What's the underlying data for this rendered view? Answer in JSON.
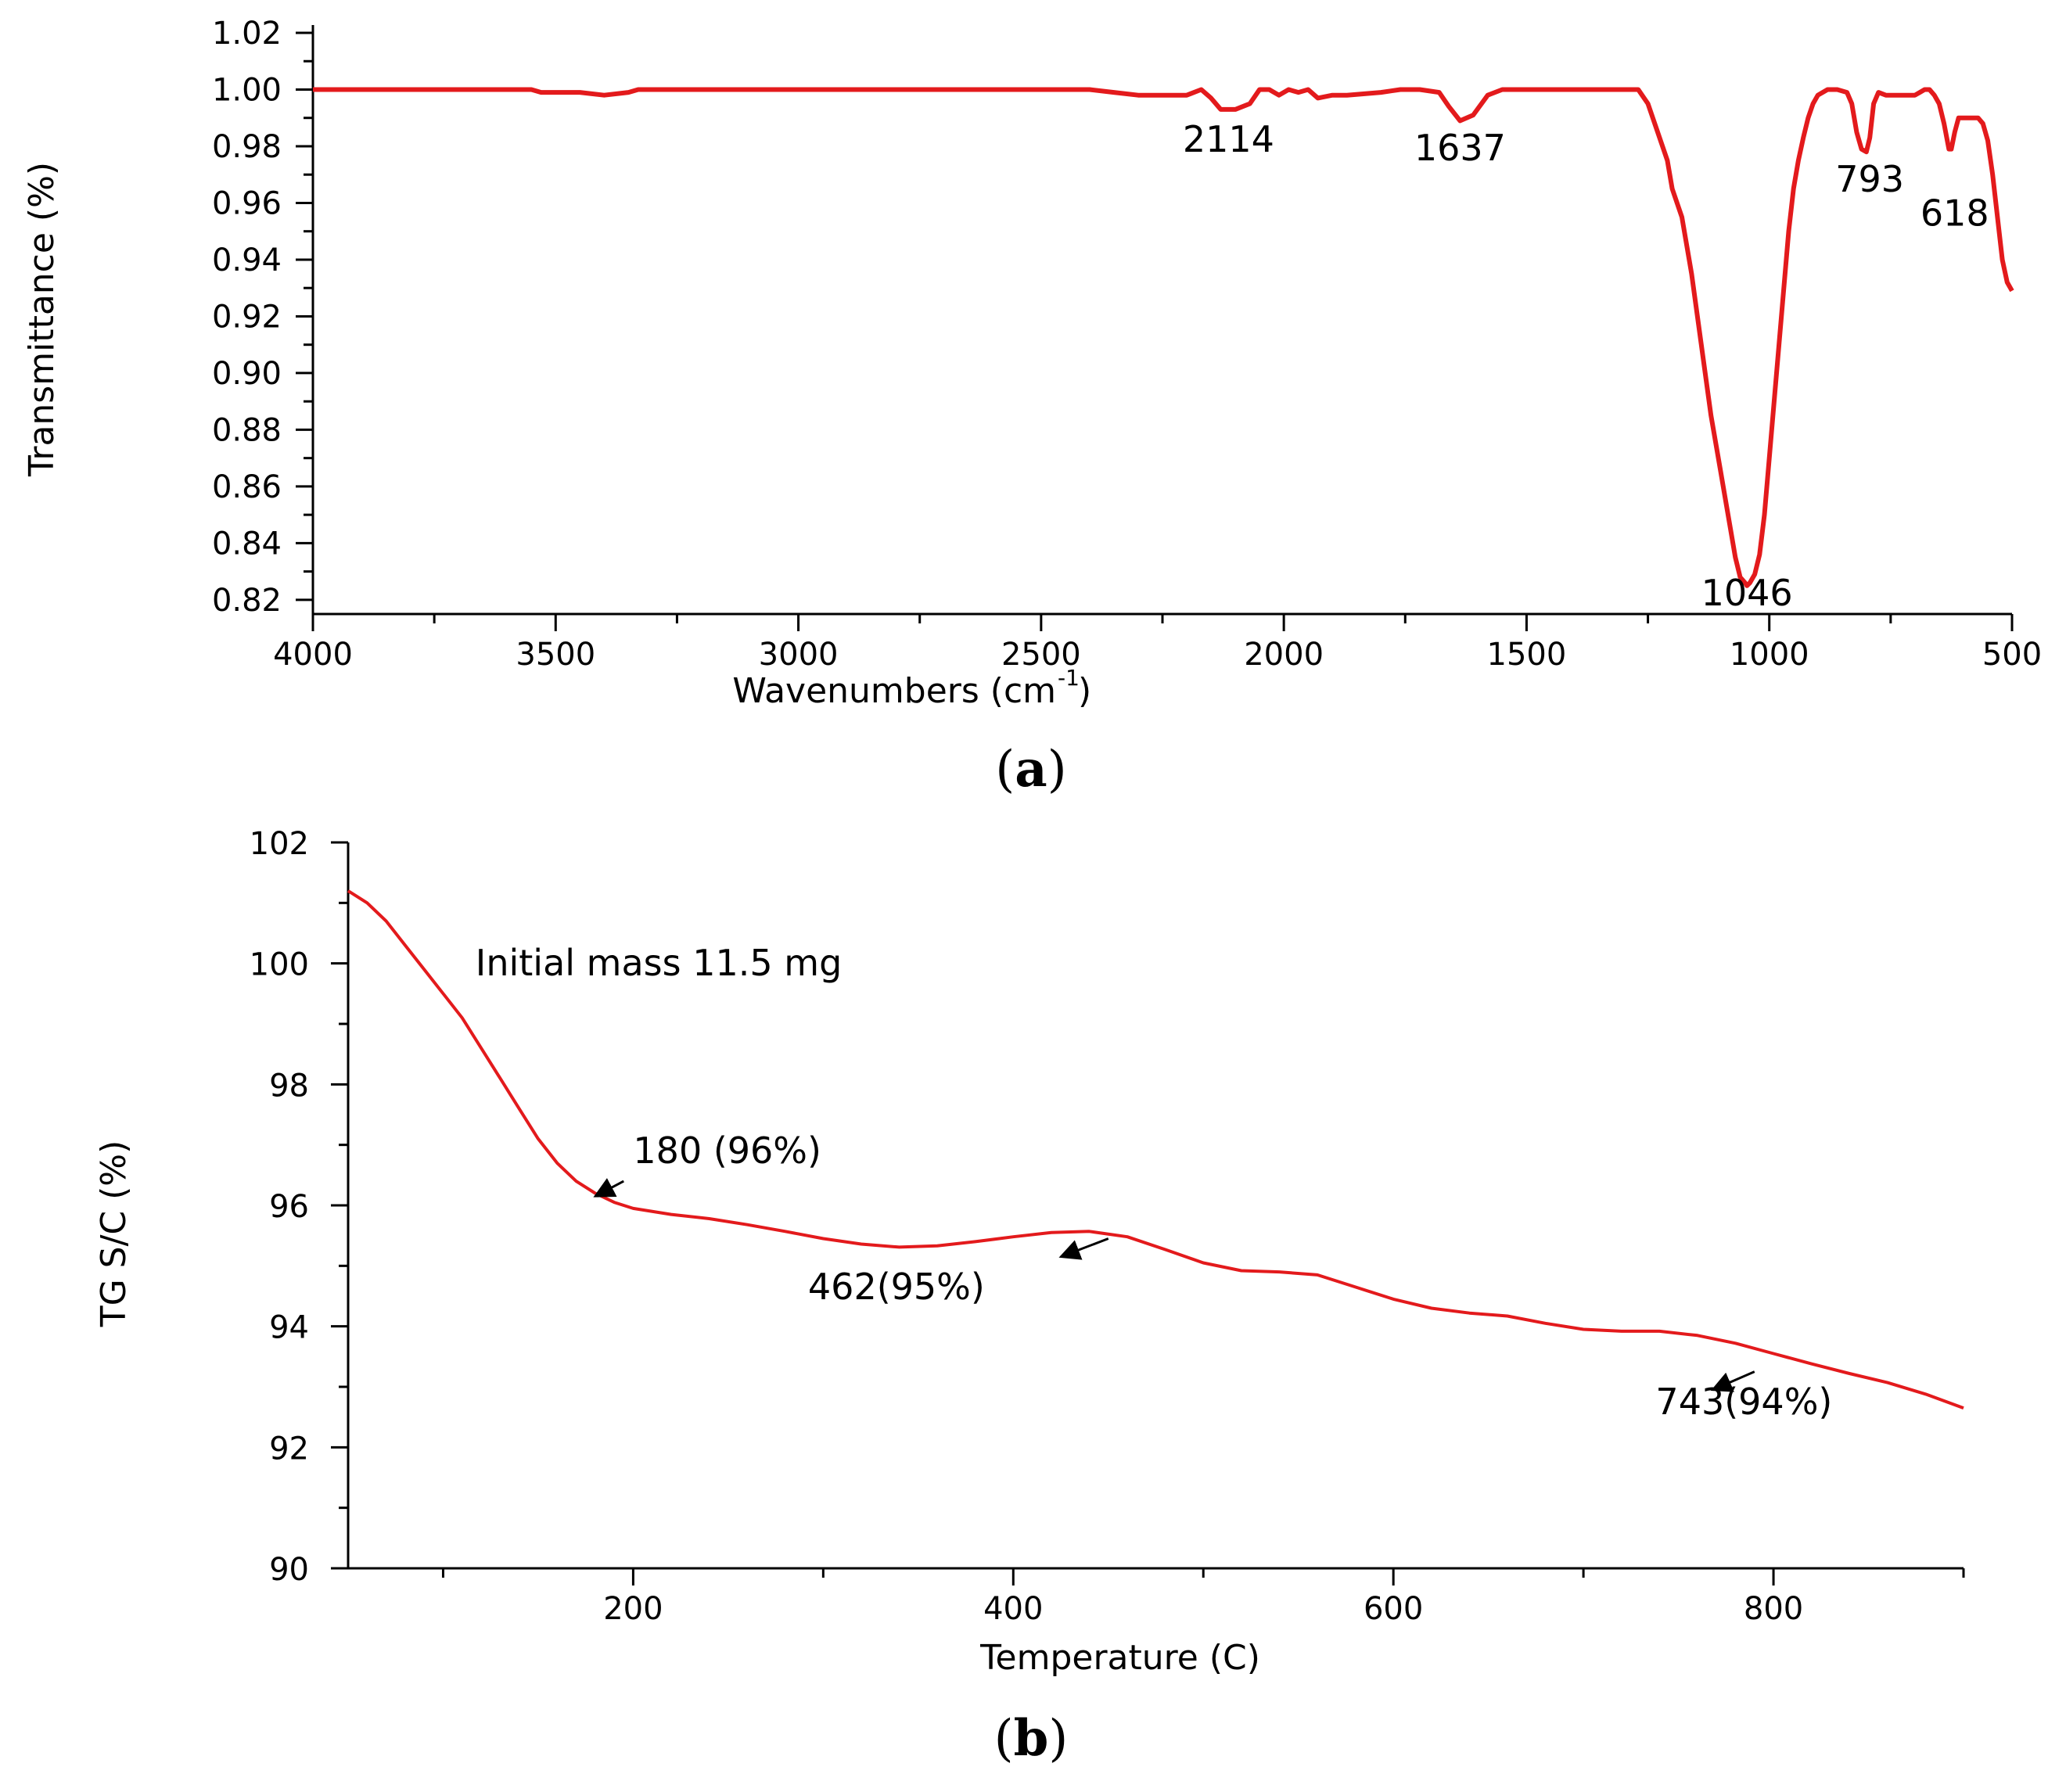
{
  "chart_data": [
    {
      "panel_label": "a",
      "type": "line",
      "xlabel": "Wavenumbers (cm",
      "xlabel_sup": "-1",
      "xlabel_end": ")",
      "ylabel": "Transmittance (%)",
      "xlim": [
        4000,
        500
      ],
      "ylim": [
        0.815,
        1.02
      ],
      "x_reversed": true,
      "x_ticks": [
        4000,
        3500,
        3000,
        2500,
        2000,
        1500,
        1000,
        500
      ],
      "y_ticks": [
        0.82,
        0.84,
        0.86,
        0.88,
        0.9,
        0.92,
        0.94,
        0.96,
        0.98,
        1.0,
        1.02
      ],
      "y_tick_labels": [
        "0.82",
        "0.84",
        "0.86",
        "0.88",
        "0.90",
        "0.92",
        "0.94",
        "0.96",
        "0.98",
        "1.00",
        "1.02"
      ],
      "line_color": "#e31a1c",
      "series": [
        {
          "x": [
            4000,
            3550,
            3530,
            3450,
            3400,
            3350,
            3330,
            3200,
            2800,
            2400,
            2350,
            2300,
            2200,
            2170,
            2150,
            2130,
            2100,
            2070,
            2050,
            2030,
            2010,
            1990,
            1970,
            1950,
            1930,
            1900,
            1870,
            1800,
            1760,
            1720,
            1680,
            1660,
            1637,
            1610,
            1580,
            1550,
            1500,
            1400,
            1300,
            1270,
            1250,
            1230,
            1210,
            1200,
            1180,
            1160,
            1140,
            1120,
            1100,
            1080,
            1070,
            1060,
            1050,
            1046,
            1040,
            1030,
            1020,
            1010,
            1000,
            990,
            980,
            970,
            960,
            950,
            940,
            930,
            920,
            910,
            900,
            880,
            860,
            840,
            830,
            820,
            810,
            800,
            793,
            785,
            775,
            760,
            740,
            720,
            700,
            690,
            680,
            670,
            660,
            650,
            640,
            630,
            625,
            618,
            610,
            600,
            590,
            580,
            570,
            560,
            550,
            540,
            530,
            520,
            510,
            500
          ],
          "y": [
            1.0,
            1.0,
            0.999,
            0.999,
            0.998,
            0.999,
            1.0,
            1.0,
            1.0,
            1.0,
            0.999,
            0.998,
            0.998,
            1.0,
            0.997,
            0.993,
            0.993,
            0.995,
            1.0,
            1.0,
            0.998,
            1.0,
            0.999,
            1.0,
            0.997,
            0.998,
            0.998,
            0.999,
            1.0,
            1.0,
            0.999,
            0.994,
            0.989,
            0.991,
            0.998,
            1.0,
            1.0,
            1.0,
            1.0,
            1.0,
            0.995,
            0.985,
            0.975,
            0.965,
            0.955,
            0.935,
            0.91,
            0.885,
            0.865,
            0.845,
            0.835,
            0.828,
            0.826,
            0.825,
            0.826,
            0.829,
            0.836,
            0.85,
            0.87,
            0.89,
            0.91,
            0.93,
            0.95,
            0.965,
            0.975,
            0.983,
            0.99,
            0.995,
            0.998,
            1.0,
            1.0,
            0.999,
            0.995,
            0.985,
            0.979,
            0.978,
            0.983,
            0.995,
            0.999,
            0.998,
            0.998,
            0.998,
            0.998,
            0.999,
            1.0,
            1.0,
            0.998,
            0.995,
            0.988,
            0.979,
            0.979,
            0.985,
            0.99,
            0.99,
            0.99,
            0.99,
            0.99,
            0.988,
            0.982,
            0.97,
            0.955,
            0.94,
            0.932,
            0.929
          ]
        }
      ],
      "annotations": [
        {
          "text": "2114",
          "x": 2114,
          "y": 0.978
        },
        {
          "text": "1637",
          "x": 1637,
          "y": 0.975
        },
        {
          "text": "1046",
          "x": 1046,
          "y": 0.818
        },
        {
          "text": "793",
          "x": 793,
          "y": 0.964
        },
        {
          "text": "618",
          "x": 618,
          "y": 0.952
        }
      ]
    },
    {
      "panel_label": "b",
      "type": "line",
      "xlabel": "Temperature (C)",
      "ylabel": "TG S/C (%)",
      "xlim": [
        50,
        900
      ],
      "ylim": [
        90,
        102
      ],
      "x_ticks": [
        200,
        400,
        600,
        800
      ],
      "x_minor_ticks": [
        100,
        300,
        500,
        700
      ],
      "y_ticks": [
        90,
        92,
        94,
        96,
        98,
        100,
        102
      ],
      "y_minor_ticks": [
        91,
        93,
        95,
        97,
        99,
        101
      ],
      "line_color": "#e31a1c",
      "series": [
        {
          "x": [
            50,
            60,
            70,
            80,
            90,
            100,
            110,
            120,
            130,
            140,
            150,
            160,
            170,
            180,
            190,
            200,
            220,
            240,
            260,
            280,
            300,
            320,
            340,
            360,
            380,
            400,
            420,
            440,
            460,
            480,
            500,
            520,
            540,
            560,
            580,
            600,
            620,
            640,
            660,
            680,
            700,
            720,
            740,
            760,
            780,
            800,
            820,
            840,
            860,
            880,
            900
          ],
          "y": [
            101.2,
            101.0,
            100.7,
            100.3,
            99.9,
            99.5,
            99.1,
            98.6,
            98.1,
            97.6,
            97.1,
            96.7,
            96.4,
            96.2,
            96.05,
            95.95,
            95.85,
            95.78,
            95.68,
            95.57,
            95.45,
            95.36,
            95.31,
            95.33,
            95.4,
            95.48,
            95.55,
            95.57,
            95.48,
            95.27,
            95.05,
            94.92,
            94.9,
            94.85,
            94.65,
            94.45,
            94.3,
            94.22,
            94.17,
            94.05,
            93.95,
            93.92,
            93.92,
            93.85,
            93.72,
            93.55,
            93.38,
            93.22,
            93.07,
            92.88,
            92.65
          ]
        }
      ],
      "annotations": [
        {
          "text": "Initial mass 11.5 mg",
          "x": 117,
          "y": 99.8
        },
        {
          "text": "180 (96%)",
          "x": 200,
          "y": 96.7,
          "arrow_to": [
            180,
            96.15
          ],
          "arrow_from": [
            195,
            96.4
          ]
        },
        {
          "text": "462(95%)",
          "x": 292,
          "y": 94.45,
          "arrow_to": [
            425,
            95.15
          ],
          "arrow_from": [
            450,
            95.45
          ]
        },
        {
          "text": "743(94%)",
          "x": 738,
          "y": 92.55,
          "arrow_to": [
            768,
            92.95
          ],
          "arrow_from": [
            790,
            93.25
          ]
        }
      ]
    }
  ]
}
